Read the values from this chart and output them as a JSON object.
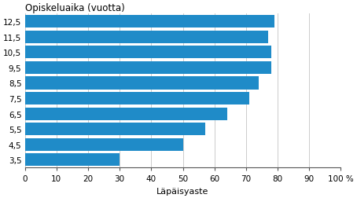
{
  "categories": [
    "3,5",
    "4,5",
    "5,5",
    "6,5",
    "7,5",
    "8,5",
    "9,5",
    "10,5",
    "11,5",
    "12,5"
  ],
  "values": [
    30,
    50,
    57,
    64,
    71,
    74,
    78,
    78,
    77,
    79
  ],
  "bar_color": "#1f8bc8",
  "title": "Opiskeluaika (vuotta)",
  "xlabel": "Läpäisyaste",
  "xlim": [
    0,
    100
  ],
  "xticks": [
    0,
    10,
    20,
    30,
    40,
    50,
    60,
    70,
    80,
    90,
    100
  ],
  "xtick_labels": [
    "0",
    "10",
    "20",
    "30",
    "40",
    "50",
    "60",
    "70",
    "80",
    "90",
    "100 %"
  ],
  "bar_height": 0.82,
  "grid_color": "#cccccc",
  "background_color": "#ffffff",
  "title_fontsize": 8.5,
  "axis_fontsize": 8,
  "tick_fontsize": 7.5
}
